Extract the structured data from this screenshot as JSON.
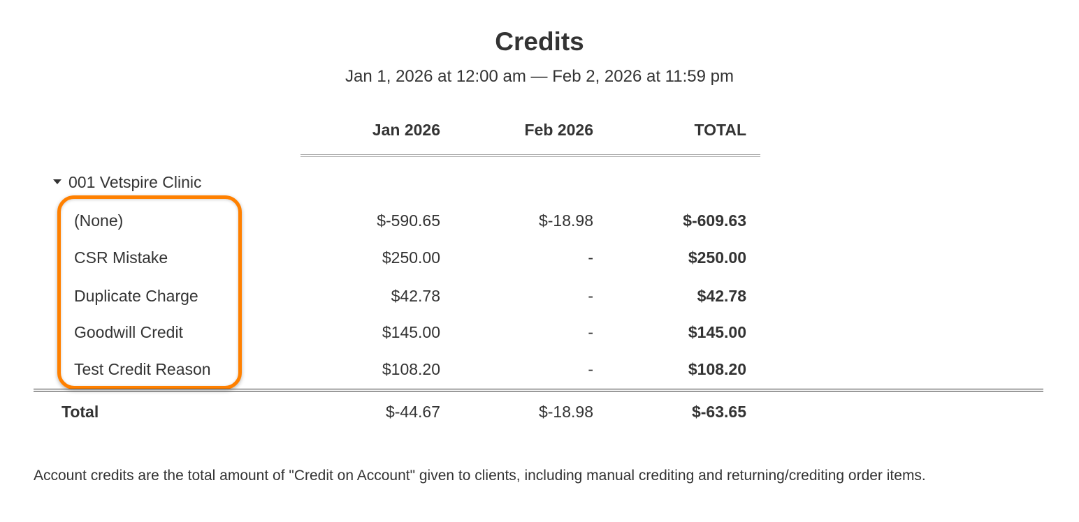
{
  "report": {
    "title": "Credits",
    "date_range": "Jan 1, 2026 at 12:00 am — Feb 2, 2026 at 11:59 pm",
    "columns": [
      "Jan 2026",
      "Feb 2026",
      "TOTAL"
    ],
    "group": {
      "label": "001 Vetspire Clinic",
      "expanded": true,
      "icon": "caret-down-icon"
    },
    "rows": [
      {
        "label": "(None)",
        "jan": "$-590.65",
        "feb": "$-18.98",
        "total": "$-609.63"
      },
      {
        "label": "CSR Mistake",
        "jan": "$250.00",
        "feb": "-",
        "total": "$250.00"
      },
      {
        "label": "Duplicate Charge",
        "jan": "$42.78",
        "feb": "-",
        "total": "$42.78"
      },
      {
        "label": "Goodwill Credit",
        "jan": "$145.00",
        "feb": "-",
        "total": "$145.00"
      },
      {
        "label": "Test Credit Reason",
        "jan": "$108.20",
        "feb": "-",
        "total": "$108.20"
      }
    ],
    "total_row": {
      "label": "Total",
      "jan": "$-44.67",
      "feb": "$-18.98",
      "total": "$-63.65"
    },
    "footnote": "Account credits are the total amount of \"Credit on Account\" given to clients, including manual crediting and returning/crediting order items."
  },
  "colors": {
    "text": "#333333",
    "highlight": "#ff8000"
  }
}
